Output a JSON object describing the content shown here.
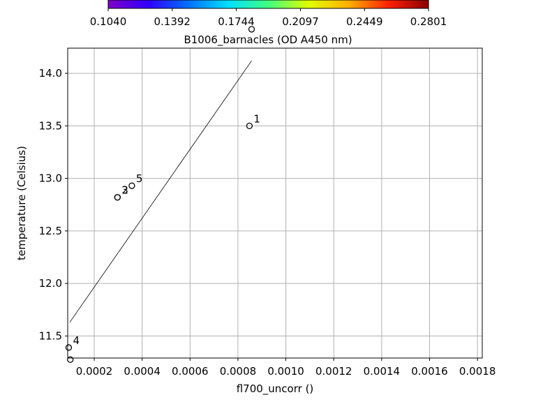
{
  "chart_data": {
    "type": "scatter",
    "xlabel": "fl700_uncorr ()",
    "ylabel": "temperature (Celsius)",
    "xlim": [
      8.92e-05,
      0.00182
    ],
    "ylim": [
      11.29,
      14.24
    ],
    "xticks": [
      "0.0002",
      "0.0004",
      "0.0006",
      "0.0008",
      "0.0010",
      "0.0012",
      "0.0014",
      "0.0016",
      "0.0018"
    ],
    "xtick_values": [
      0.0002,
      0.0004,
      0.0006,
      0.0008,
      0.001,
      0.0012,
      0.0014,
      0.0016,
      0.0018
    ],
    "yticks": [
      "11.5",
      "12.0",
      "12.5",
      "13.0",
      "13.5",
      "14.0"
    ],
    "ytick_values": [
      11.5,
      12.0,
      12.5,
      13.0,
      13.5,
      14.0
    ],
    "grid": true,
    "points": [
      {
        "label": "1",
        "x": 0.000848,
        "y": 13.5
      },
      {
        "label": "2",
        "x": 0.000297,
        "y": 12.82
      },
      {
        "label": "3",
        "x": 0.000297,
        "y": 12.82
      },
      {
        "label": "4",
        "x": 9.34e-05,
        "y": 11.39
      },
      {
        "label": "5",
        "x": 0.000357,
        "y": 12.93
      }
    ],
    "outlier_markers": [
      {
        "x": 0.000857,
        "y": 14.42
      },
      {
        "x": 0.0001,
        "y": 11.275
      }
    ],
    "fit_line": {
      "x": [
        9.78e-05,
        0.000857
      ],
      "y": [
        11.63,
        14.12
      ]
    },
    "colorbar": {
      "label": "B1006_barnacles (OD A450 nm)",
      "ticks": [
        "0.1040",
        "0.1392",
        "0.1744",
        "0.2097",
        "0.2449",
        "0.2801"
      ],
      "tick_values": [
        0.104,
        0.1392,
        0.1744,
        0.2097,
        0.2449,
        0.2801
      ],
      "range": [
        0.104,
        0.2801
      ],
      "colormap": [
        "#7f00c8",
        "#3000ff",
        "#0070ff",
        "#00e0ff",
        "#40ff80",
        "#e0ff00",
        "#ffb000",
        "#ff2000",
        "#8b0000"
      ]
    }
  }
}
